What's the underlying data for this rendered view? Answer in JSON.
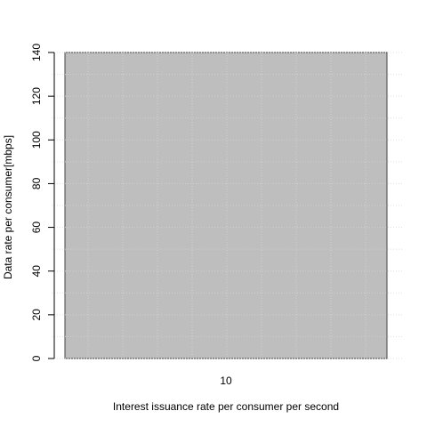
{
  "chart_data": {
    "type": "bar",
    "categories": [
      "10"
    ],
    "series": [
      {
        "values": [
          140
        ]
      }
    ],
    "xlabel": "Interest issuance rate per consumer per second",
    "ylabel": "Data rate per consumer[mbps]",
    "ylim": [
      0,
      140
    ],
    "yticks": [
      0,
      20,
      40,
      60,
      80,
      100,
      120,
      140
    ],
    "bar_color": "#bebebe",
    "grid": true,
    "grid_color": "#e0e0e0"
  }
}
